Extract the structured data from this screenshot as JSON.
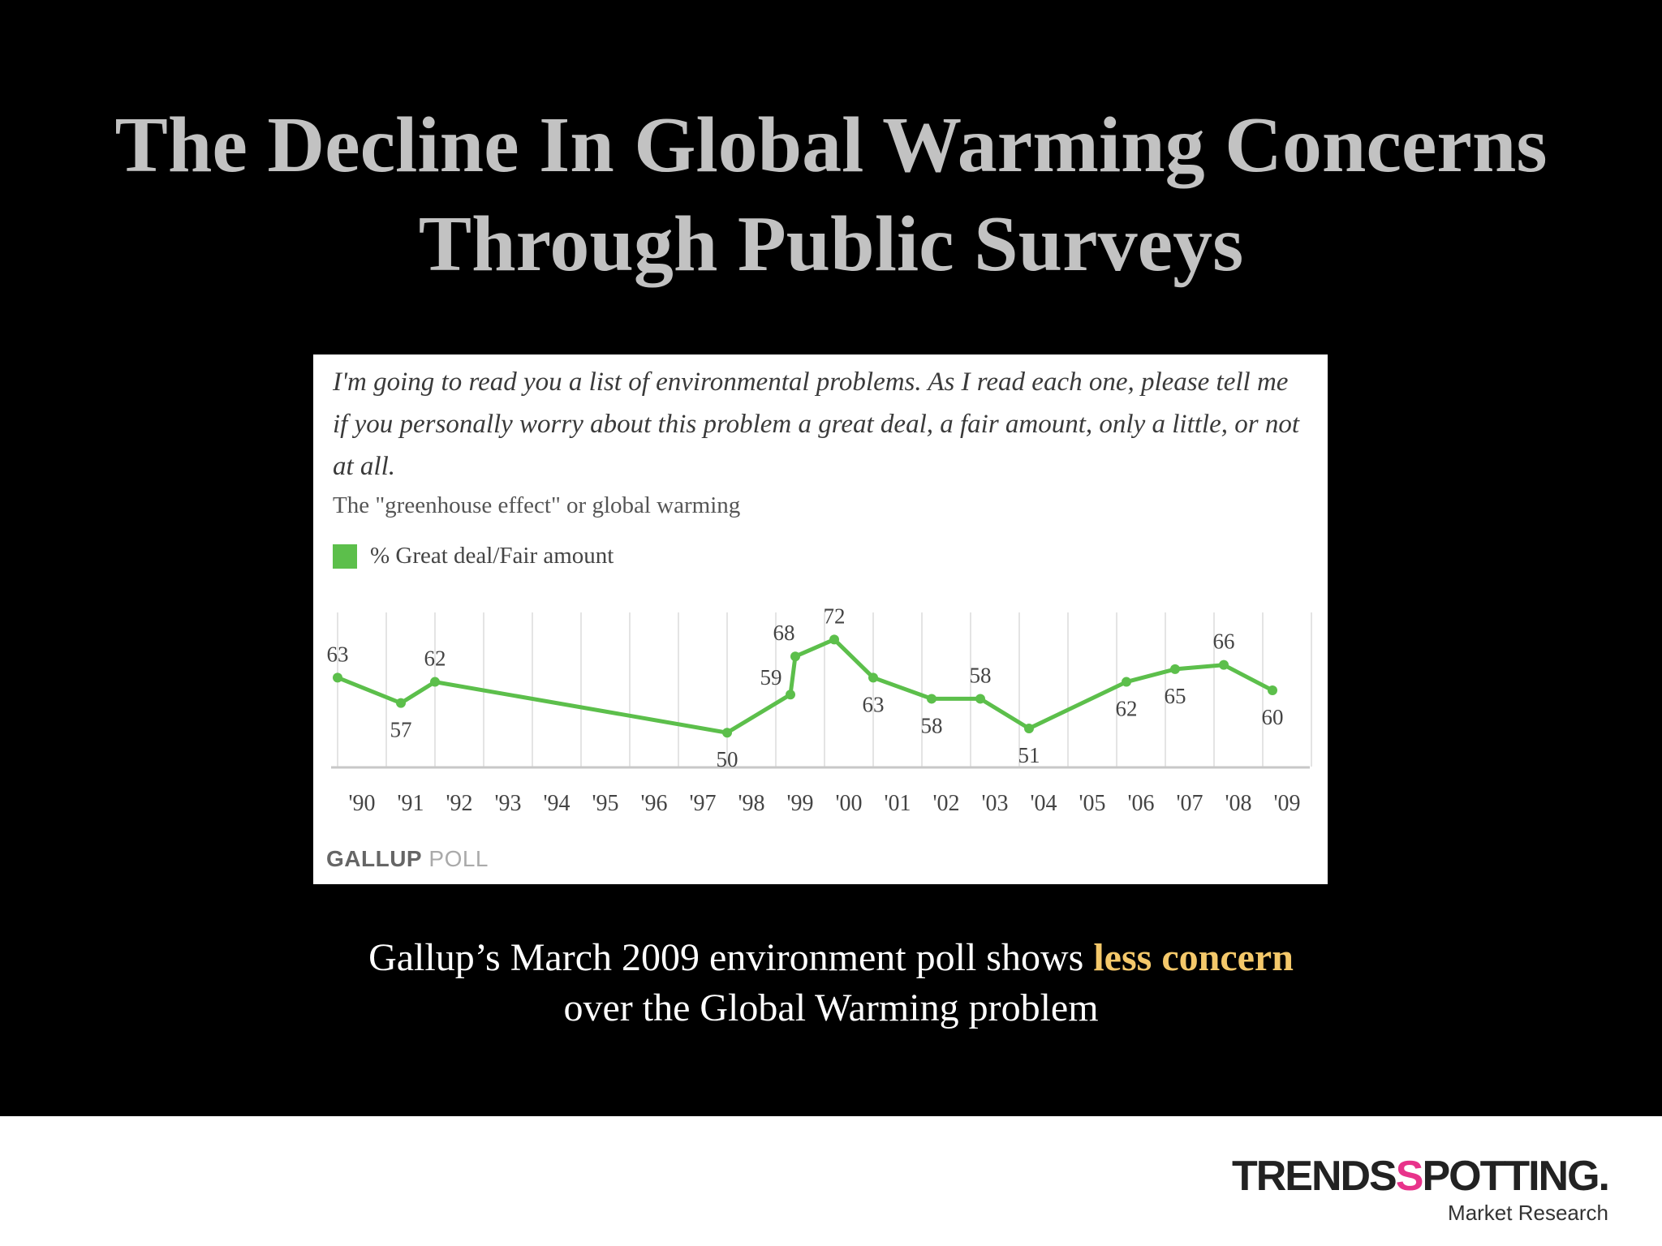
{
  "slide": {
    "title_line1": "The Decline In Global Warming Concerns",
    "title_line2": "Through Public Surveys",
    "caption_part1": "Gallup’s March 2009 environment poll shows ",
    "caption_highlight": "less concern",
    "caption_line2": "over the Global Warming problem"
  },
  "chart_panel": {
    "question": "I'm going to read you a list of environmental problems. As I read each one, please tell me if you personally worry about this problem a great deal, a fair amount, only a little, or not at all.",
    "subtitle": "The \"greenhouse effect\" or global warming",
    "legend_label": "% Great deal/Fair amount",
    "source_bold": "GALLUP",
    "source_light": "POLL"
  },
  "brand": {
    "name_part1": "TRENDS",
    "name_accent": "S",
    "name_part2": "POTTING.",
    "tagline": "Market Research"
  },
  "chart_data": {
    "type": "line",
    "categories": [
      "'90",
      "'91",
      "'92",
      "'93",
      "'94",
      "'95",
      "'96",
      "'97",
      "'98",
      "'99",
      "'00",
      "'01",
      "'02",
      "'03",
      "'04",
      "'05",
      "'06",
      "'07",
      "'08",
      "'09"
    ],
    "xlim": [
      1989,
      2009
    ],
    "ylim": [
      42,
      78
    ],
    "grid": true,
    "line_color": "#5cbf4b",
    "series": [
      {
        "name": "% Great deal/Fair amount",
        "points": [
          {
            "x": 1989.0,
            "y": 63,
            "label": "63"
          },
          {
            "x": 1990.3,
            "y": 57,
            "label": "57"
          },
          {
            "x": 1991.0,
            "y": 62,
            "label": "62"
          },
          {
            "x": 1997.0,
            "y": 50,
            "label": "50"
          },
          {
            "x": 1998.3,
            "y": 59,
            "label": "59"
          },
          {
            "x": 1998.4,
            "y": 68,
            "label": "68"
          },
          {
            "x": 1999.2,
            "y": 72,
            "label": "72"
          },
          {
            "x": 2000.0,
            "y": 63,
            "label": "63"
          },
          {
            "x": 2001.2,
            "y": 58,
            "label": "58"
          },
          {
            "x": 2002.2,
            "y": 58,
            "label": "58"
          },
          {
            "x": 2003.2,
            "y": 51,
            "label": "51"
          },
          {
            "x": 2005.2,
            "y": 62,
            "label": "62"
          },
          {
            "x": 2006.2,
            "y": 65,
            "label": "65"
          },
          {
            "x": 2007.2,
            "y": 66,
            "label": "66"
          },
          {
            "x": 2008.2,
            "y": 60,
            "label": "60"
          }
        ]
      }
    ]
  }
}
